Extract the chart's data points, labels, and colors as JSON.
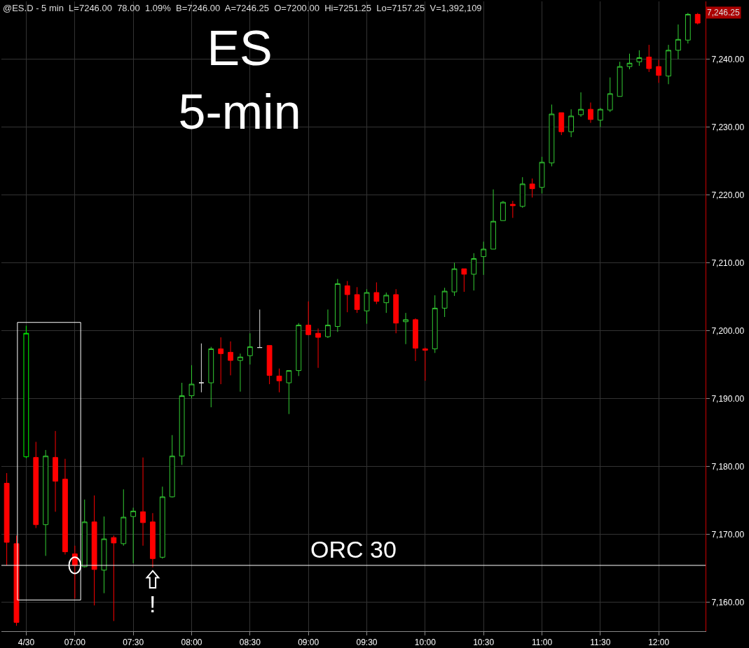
{
  "chart_data": {
    "type": "candlestick",
    "title": "ES\n5-min",
    "x": [
      6.4167,
      6.5,
      6.5833,
      6.6667,
      6.75,
      6.8333,
      6.9167,
      7,
      7.0833,
      7.1667,
      7.25,
      7.3333,
      7.4167,
      7.5,
      7.5833,
      7.6667,
      7.75,
      7.8333,
      7.9167,
      8,
      8.0833,
      8.1667,
      8.25,
      8.3333,
      8.4167,
      8.5,
      8.5833,
      8.6667,
      8.75,
      8.8333,
      8.9167,
      9,
      9.0833,
      9.1667,
      9.25,
      9.3333,
      9.4167,
      9.5,
      9.5833,
      9.6667,
      9.75,
      9.8333,
      9.9167,
      10,
      10.0833,
      10.1667,
      10.25,
      10.3333,
      10.4167,
      10.5,
      10.5833,
      10.6667,
      10.75,
      10.8333,
      10.9167,
      11,
      11.0833,
      11.1667,
      11.25,
      11.3333,
      11.4167,
      11.5,
      11.5833,
      11.6667,
      11.75,
      11.8333,
      11.9167,
      12,
      12.0833,
      12.1667,
      12.25,
      12.3333
    ],
    "ohlc": [
      [
        7177.5,
        7179.0,
        7165.4,
        7168.8
      ],
      [
        7168.6,
        7169.8,
        7156.5,
        7157.0
      ],
      [
        7181.4,
        7200.7,
        7181.2,
        7199.6
      ],
      [
        7181.3,
        7183.6,
        7170.9,
        7171.4
      ],
      [
        7171.4,
        7182.4,
        7166.8,
        7181.5
      ],
      [
        7181.3,
        7185.2,
        7173.3,
        7177.8
      ],
      [
        7178.1,
        7181.1,
        7167.0,
        7167.4
      ],
      [
        7167.1,
        7168.3,
        7160.5,
        7165.4
      ],
      [
        7165.2,
        7175.1,
        7165.1,
        7171.8
      ],
      [
        7171.8,
        7175.7,
        7159.5,
        7164.8
      ],
      [
        7164.7,
        7172.6,
        7161.3,
        7169.3
      ],
      [
        7169.5,
        7169.8,
        7157.2,
        7168.7
      ],
      [
        7168.6,
        7176.6,
        7168.3,
        7172.5
      ],
      [
        7172.6,
        7173.9,
        7165.7,
        7173.4
      ],
      [
        7173.3,
        7181.3,
        7168.3,
        7171.7
      ],
      [
        7171.8,
        7173.1,
        7165.1,
        7166.4
      ],
      [
        7166.6,
        7177.0,
        7166.4,
        7175.5
      ],
      [
        7175.5,
        7184.6,
        7175.4,
        7181.5
      ],
      [
        7181.5,
        7192.3,
        7180.2,
        7190.4
      ],
      [
        7190.4,
        7194.9,
        7190.0,
        7192.1
      ],
      [
        7192.3,
        7198.1,
        7190.9,
        7192.3
      ],
      [
        7192.3,
        7197.6,
        7188.7,
        7197.3
      ],
      [
        7197.3,
        7199.0,
        7192.1,
        7196.6
      ],
      [
        7196.8,
        7198.4,
        7193.4,
        7195.6
      ],
      [
        7195.6,
        7196.6,
        7191.0,
        7196.1
      ],
      [
        7196.3,
        7199.6,
        7195.0,
        7197.6
      ],
      [
        7197.5,
        7203.1,
        7197.5,
        7197.5
      ],
      [
        7197.8,
        7197.8,
        7192.1,
        7193.4
      ],
      [
        7193.3,
        7194.4,
        7190.9,
        7192.6
      ],
      [
        7192.3,
        7194.1,
        7187.7,
        7194.1
      ],
      [
        7194.1,
        7201.1,
        7193.3,
        7200.8
      ],
      [
        7200.8,
        7204.3,
        7199.3,
        7199.4
      ],
      [
        7199.6,
        7200.3,
        7194.5,
        7199.0
      ],
      [
        7199.1,
        7203.1,
        7198.9,
        7200.8
      ],
      [
        7200.6,
        7207.6,
        7199.8,
        7206.9
      ],
      [
        7206.6,
        7207.3,
        7202.7,
        7205.3
      ],
      [
        7205.3,
        7206.4,
        7202.6,
        7203.1
      ],
      [
        7202.9,
        7206.1,
        7201.0,
        7205.6
      ],
      [
        7205.6,
        7207.1,
        7203.9,
        7204.3
      ],
      [
        7204.1,
        7205.6,
        7202.6,
        7205.2
      ],
      [
        7205.3,
        7206.1,
        7199.6,
        7201.1
      ],
      [
        7201.3,
        7202.6,
        7198.0,
        7201.6
      ],
      [
        7201.6,
        7201.8,
        7195.5,
        7197.4
      ],
      [
        7197.3,
        7197.5,
        7192.6,
        7197.1
      ],
      [
        7197.3,
        7205.2,
        7196.7,
        7203.3
      ],
      [
        7203.3,
        7206.3,
        7202.0,
        7205.8
      ],
      [
        7205.7,
        7210.0,
        7205.1,
        7209.1
      ],
      [
        7209.1,
        7209.1,
        7205.7,
        7208.3
      ],
      [
        7208.3,
        7211.4,
        7205.9,
        7210.6
      ],
      [
        7210.9,
        7213.1,
        7208.2,
        7212.0
      ],
      [
        7212.0,
        7220.8,
        7212.0,
        7216.1
      ],
      [
        7216.2,
        7219.1,
        7216.2,
        7218.9
      ],
      [
        7218.6,
        7219.1,
        7216.6,
        7218.4
      ],
      [
        7218.3,
        7222.6,
        7218.1,
        7221.6
      ],
      [
        7221.6,
        7222.4,
        7219.6,
        7220.9
      ],
      [
        7221.1,
        7225.6,
        7220.2,
        7224.8
      ],
      [
        7224.7,
        7233.3,
        7224.2,
        7231.9
      ],
      [
        7232.1,
        7232.1,
        7228.8,
        7229.3
      ],
      [
        7229.3,
        7232.6,
        7228.5,
        7231.6
      ],
      [
        7231.8,
        7235.1,
        7231.5,
        7232.6
      ],
      [
        7232.6,
        7233.6,
        7230.6,
        7231.1
      ],
      [
        7231.0,
        7232.8,
        7230.0,
        7232.6
      ],
      [
        7232.5,
        7237.3,
        7232.2,
        7234.9
      ],
      [
        7234.5,
        7239.6,
        7234.5,
        7238.9
      ],
      [
        7238.9,
        7240.8,
        7238.5,
        7239.4
      ],
      [
        7239.6,
        7241.3,
        7239.0,
        7240.2
      ],
      [
        7240.3,
        7242.1,
        7238.1,
        7238.6
      ],
      [
        7238.9,
        7239.9,
        7236.5,
        7237.6
      ],
      [
        7237.5,
        7242.1,
        7236.3,
        7241.3
      ],
      [
        7241.3,
        7245.1,
        7240.0,
        7242.9
      ],
      [
        7242.8,
        7246.8,
        7242.3,
        7246.6
      ],
      [
        7246.6,
        7246.8,
        7245.1,
        7245.3
      ]
    ],
    "colors": [
      "#ff0000",
      "#ff0000",
      "#00ff00",
      "#ff0000",
      "#33cc33",
      "#ff0000",
      "#ff0000",
      "#ff0000",
      "#33cc33",
      "#ff0000",
      "#33cc33",
      "#ff0000",
      "#33cc33",
      "#33cc33",
      "#ff0000",
      "#ff0000",
      "#33cc33",
      "#33cc33",
      "#33cc33",
      "#33cc33",
      "#dddddd",
      "#33cc33",
      "#ff0000",
      "#ff0000",
      "#33cc33",
      "#33cc33",
      "#dddddd",
      "#ff0000",
      "#ff0000",
      "#33cc33",
      "#33cc33",
      "#ff0000",
      "#ff0000",
      "#33cc33",
      "#33cc33",
      "#ff0000",
      "#ff0000",
      "#33cc33",
      "#ff0000",
      "#33cc33",
      "#ff0000",
      "#33cc33",
      "#ff0000",
      "#ff0000",
      "#33cc33",
      "#33cc33",
      "#33cc33",
      "#ff0000",
      "#33cc33",
      "#33cc33",
      "#33cc33",
      "#33cc33",
      "#ff0000",
      "#33cc33",
      "#ff0000",
      "#33cc33",
      "#33cc33",
      "#ff0000",
      "#33cc33",
      "#33cc33",
      "#ff0000",
      "#33cc33",
      "#33cc33",
      "#33cc33",
      "#33cc33",
      "#33cc33",
      "#ff0000",
      "#ff0000",
      "#33cc33",
      "#33cc33",
      "#33cc33",
      "#ff0000"
    ],
    "xlim": [
      6.371,
      12.401
    ],
    "xticks": [
      {
        "value": 6.5833,
        "label": "4/30"
      },
      {
        "value": 7,
        "label": "07:00"
      },
      {
        "value": 7.5,
        "label": "07:30"
      },
      {
        "value": 8,
        "label": "08:00"
      },
      {
        "value": 8.5,
        "label": "08:30"
      },
      {
        "value": 9,
        "label": "09:00"
      },
      {
        "value": 9.5,
        "label": "09:30"
      },
      {
        "value": 10,
        "label": "10:00"
      },
      {
        "value": 10.5,
        "label": "10:30"
      },
      {
        "value": 11,
        "label": "11:00"
      },
      {
        "value": 11.5,
        "label": "11:30"
      },
      {
        "value": 12,
        "label": "12:00"
      }
    ],
    "ylim": [
      7155.7,
      7248.5
    ],
    "yticks": [
      {
        "value": 7160,
        "label": "7,160.00"
      },
      {
        "value": 7170,
        "label": "7,170.00"
      },
      {
        "value": 7180,
        "label": "7,180.00"
      },
      {
        "value": 7190,
        "label": "7,190.00"
      },
      {
        "value": 7200,
        "label": "7,200.00"
      },
      {
        "value": 7210,
        "label": "7,210.00"
      },
      {
        "value": 7220,
        "label": "7,220.00"
      },
      {
        "value": 7230,
        "label": "7,230.00"
      },
      {
        "value": 7240,
        "label": "7,240.00"
      }
    ],
    "grid": true,
    "ref_lines": [
      {
        "axis": "y",
        "value": 7165.4,
        "label": "ORC 30",
        "color": "#ffffff"
      }
    ],
    "annotations": [
      "@ES.D - 5 min  L=7246.00  78.00  1.09%  B=7246.00  A=7246.25  O=7200.00  Hi=7251.25  Lo=7157.25  V=1,392,109",
      "!",
      "7,246.25"
    ]
  }
}
